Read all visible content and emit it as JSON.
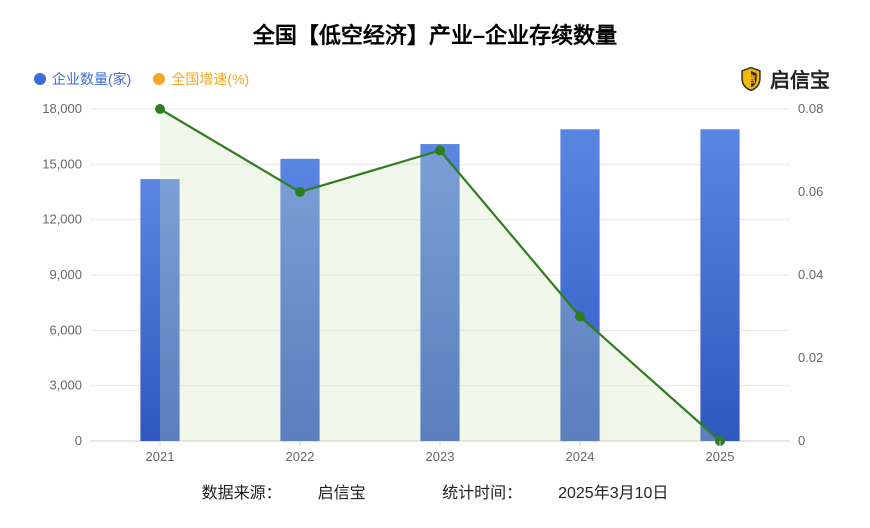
{
  "title": "全国【低空经济】产业–企业存续数量",
  "title_fontsize": 22,
  "legend": {
    "series1": {
      "label": "企业数量(家)",
      "color": "#3a6bd6"
    },
    "series2": {
      "label": "全国增速(%)",
      "color": "#f5a623"
    }
  },
  "brand": {
    "name": "启信宝",
    "icon_bg": "#f5b800",
    "icon_stroke": "#2a2a2a",
    "fontsize": 20
  },
  "chart": {
    "type": "bar+line",
    "categories": [
      "2021",
      "2022",
      "2023",
      "2024",
      "2025"
    ],
    "bar_series": {
      "name": "企业数量(家)",
      "values": [
        14200,
        15300,
        16100,
        16900,
        16900
      ],
      "colors": [
        "#3a6bd6",
        "#3a6bd6",
        "#3a6bd6",
        "#3a6bd6",
        "#3a6bd6"
      ],
      "gradient_top": "#5b86e2",
      "gradient_bottom": "#2f58bf",
      "bar_width_ratio": 0.28
    },
    "line_series": {
      "name": "全国增速(%)",
      "values": [
        0.08,
        0.06,
        0.07,
        0.03,
        0.0
      ],
      "line_color": "#2e7d1f",
      "marker_fill": "#2e7d1f",
      "marker_radius": 5,
      "area_fill": "#cfe4b8"
    },
    "y_left": {
      "min": 0,
      "max": 18000,
      "step": 3000,
      "labels": [
        "0",
        "3,000",
        "6,000",
        "9,000",
        "12,000",
        "15,000",
        "18,000"
      ]
    },
    "y_right": {
      "min": 0,
      "max": 0.08,
      "step": 0.02,
      "labels": [
        "0",
        "0.02",
        "0.04",
        "0.06",
        "0.08"
      ]
    },
    "background_color": "#ffffff",
    "grid_color": "#e8e8e8",
    "axis_color": "#cccccc",
    "label_color": "#666666",
    "label_fontsize": 13
  },
  "footer": {
    "source_label": "数据来源：",
    "source_value": "启信宝",
    "date_label": "统计时间：",
    "date_value": "2025年3月10日"
  }
}
